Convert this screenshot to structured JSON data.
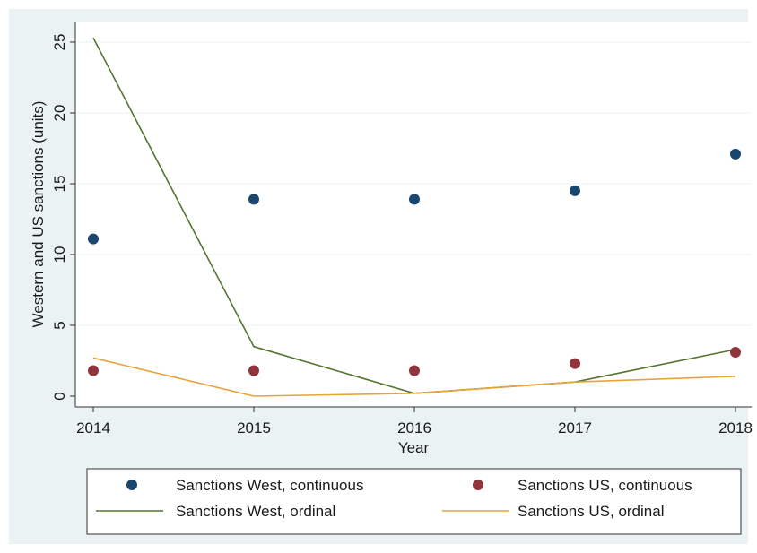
{
  "chart_data": {
    "type": "line",
    "title": "",
    "xlabel": "Year",
    "ylabel": "Western and US sanctions (units)",
    "x": [
      2014,
      2015,
      2016,
      2017,
      2018
    ],
    "x_ticks": [
      "2014",
      "2015",
      "2016",
      "2017",
      "2018"
    ],
    "y_ticks": [
      "0",
      "5",
      "10",
      "15",
      "20",
      "25"
    ],
    "xlim": [
      2014,
      2018
    ],
    "ylim": [
      0,
      25
    ],
    "grid": true,
    "legend_position": "bottom",
    "series": [
      {
        "name": "Sanctions West, continuous",
        "kind": "scatter",
        "color": "#1a476f",
        "values": [
          11.1,
          13.9,
          13.9,
          14.5,
          17.1
        ]
      },
      {
        "name": "Sanctions US, continuous",
        "kind": "scatter",
        "color": "#90353b",
        "values": [
          1.8,
          1.8,
          1.8,
          2.3,
          3.1
        ]
      },
      {
        "name": "Sanctions West, ordinal",
        "kind": "line",
        "color": "#55752f",
        "values": [
          25.3,
          3.5,
          0.2,
          1.0,
          3.3
        ]
      },
      {
        "name": "Sanctions US, ordinal",
        "kind": "line",
        "color": "#e8a33a",
        "values": [
          2.7,
          0.0,
          0.2,
          1.0,
          1.4
        ]
      }
    ],
    "legend_order": [
      0,
      1,
      2,
      3
    ]
  }
}
